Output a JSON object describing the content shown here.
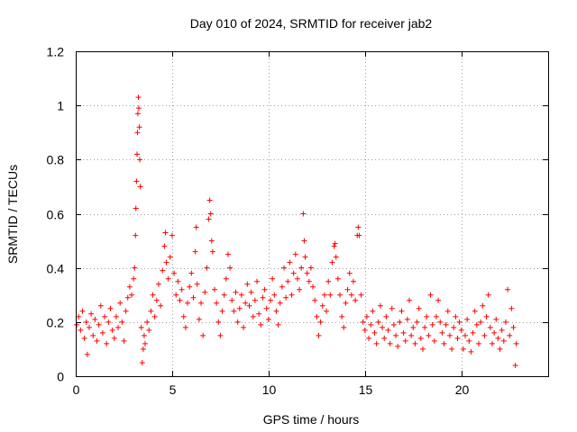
{
  "chart_data": {
    "type": "scatter",
    "title": "Day 010 of 2024, SRMTID for receiver jab2",
    "xlabel": "GPS time / hours",
    "ylabel": "SRMTID / TECUs",
    "xlim": [
      0,
      24.5
    ],
    "ylim": [
      0,
      1.2
    ],
    "x_ticks": [
      0,
      5,
      10,
      15,
      20
    ],
    "x_tick_labels": [
      "0",
      "5",
      "10",
      "15",
      "20"
    ],
    "y_ticks": [
      0,
      0.2,
      0.4,
      0.6,
      0.8,
      1.0,
      1.2
    ],
    "y_tick_labels": [
      "0",
      "0.2",
      "0.4",
      "0.6",
      "0.8",
      "1",
      "1.2"
    ],
    "grid": true,
    "marker": "plus",
    "color": "#ff0000",
    "series": [
      {
        "name": "jab2",
        "points": [
          [
            0.05,
            0.19
          ],
          [
            0.15,
            0.22
          ],
          [
            0.25,
            0.17
          ],
          [
            0.35,
            0.24
          ],
          [
            0.45,
            0.14
          ],
          [
            0.55,
            0.2
          ],
          [
            0.6,
            0.08
          ],
          [
            0.7,
            0.18
          ],
          [
            0.8,
            0.23
          ],
          [
            0.9,
            0.15
          ],
          [
            1.0,
            0.21
          ],
          [
            1.1,
            0.13
          ],
          [
            1.2,
            0.19
          ],
          [
            1.3,
            0.26
          ],
          [
            1.4,
            0.16
          ],
          [
            1.5,
            0.22
          ],
          [
            1.6,
            0.12
          ],
          [
            1.7,
            0.2
          ],
          [
            1.8,
            0.25
          ],
          [
            1.9,
            0.17
          ],
          [
            2.0,
            0.14
          ],
          [
            2.1,
            0.22
          ],
          [
            2.2,
            0.18
          ],
          [
            2.3,
            0.27
          ],
          [
            2.4,
            0.2
          ],
          [
            2.5,
            0.13
          ],
          [
            2.6,
            0.24
          ],
          [
            2.7,
            0.29
          ],
          [
            2.8,
            0.33
          ],
          [
            2.9,
            0.3
          ],
          [
            3.0,
            0.36
          ],
          [
            3.05,
            0.4
          ],
          [
            3.1,
            0.52
          ],
          [
            3.12,
            0.62
          ],
          [
            3.15,
            0.72
          ],
          [
            3.18,
            0.82
          ],
          [
            3.2,
            0.9
          ],
          [
            3.22,
            0.97
          ],
          [
            3.25,
            1.03
          ],
          [
            3.27,
            0.99
          ],
          [
            3.3,
            0.92
          ],
          [
            3.32,
            0.8
          ],
          [
            3.35,
            0.7
          ],
          [
            3.4,
            0.18
          ],
          [
            3.45,
            0.05
          ],
          [
            3.5,
            0.1
          ],
          [
            3.55,
            0.15
          ],
          [
            3.6,
            0.12
          ],
          [
            3.7,
            0.2
          ],
          [
            3.8,
            0.17
          ],
          [
            3.9,
            0.24
          ],
          [
            4.0,
            0.3
          ],
          [
            4.1,
            0.22
          ],
          [
            4.2,
            0.28
          ],
          [
            4.3,
            0.34
          ],
          [
            4.4,
            0.26
          ],
          [
            4.5,
            0.39
          ],
          [
            4.6,
            0.48
          ],
          [
            4.65,
            0.53
          ],
          [
            4.7,
            0.42
          ],
          [
            4.8,
            0.36
          ],
          [
            4.9,
            0.44
          ],
          [
            5.0,
            0.52
          ],
          [
            5.1,
            0.38
          ],
          [
            5.2,
            0.3
          ],
          [
            5.3,
            0.35
          ],
          [
            5.4,
            0.28
          ],
          [
            5.5,
            0.32
          ],
          [
            5.6,
            0.22
          ],
          [
            5.7,
            0.18
          ],
          [
            5.8,
            0.27
          ],
          [
            5.9,
            0.33
          ],
          [
            6.0,
            0.38
          ],
          [
            6.1,
            0.29
          ],
          [
            6.2,
            0.46
          ],
          [
            6.25,
            0.55
          ],
          [
            6.3,
            0.34
          ],
          [
            6.4,
            0.21
          ],
          [
            6.5,
            0.27
          ],
          [
            6.6,
            0.15
          ],
          [
            6.7,
            0.31
          ],
          [
            6.8,
            0.4
          ],
          [
            6.9,
            0.58
          ],
          [
            6.95,
            0.65
          ],
          [
            7.0,
            0.6
          ],
          [
            7.05,
            0.5
          ],
          [
            7.1,
            0.46
          ],
          [
            7.2,
            0.32
          ],
          [
            7.3,
            0.27
          ],
          [
            7.4,
            0.2
          ],
          [
            7.5,
            0.15
          ],
          [
            7.6,
            0.24
          ],
          [
            7.7,
            0.3
          ],
          [
            7.8,
            0.36
          ],
          [
            7.9,
            0.45
          ],
          [
            8.0,
            0.4
          ],
          [
            8.1,
            0.28
          ],
          [
            8.2,
            0.24
          ],
          [
            8.3,
            0.31
          ],
          [
            8.4,
            0.2
          ],
          [
            8.5,
            0.25
          ],
          [
            8.6,
            0.3
          ],
          [
            8.7,
            0.18
          ],
          [
            8.8,
            0.27
          ],
          [
            8.9,
            0.34
          ],
          [
            9.0,
            0.26
          ],
          [
            9.1,
            0.31
          ],
          [
            9.2,
            0.22
          ],
          [
            9.3,
            0.28
          ],
          [
            9.4,
            0.35
          ],
          [
            9.5,
            0.23
          ],
          [
            9.6,
            0.19
          ],
          [
            9.7,
            0.29
          ],
          [
            9.8,
            0.32
          ],
          [
            9.9,
            0.25
          ],
          [
            10.0,
            0.21
          ],
          [
            10.1,
            0.28
          ],
          [
            10.2,
            0.36
          ],
          [
            10.3,
            0.3
          ],
          [
            10.4,
            0.24
          ],
          [
            10.5,
            0.19
          ],
          [
            10.6,
            0.27
          ],
          [
            10.7,
            0.33
          ],
          [
            10.8,
            0.4
          ],
          [
            10.9,
            0.29
          ],
          [
            11.0,
            0.35
          ],
          [
            11.1,
            0.42
          ],
          [
            11.2,
            0.3
          ],
          [
            11.3,
            0.38
          ],
          [
            11.4,
            0.45
          ],
          [
            11.5,
            0.36
          ],
          [
            11.6,
            0.32
          ],
          [
            11.7,
            0.4
          ],
          [
            11.8,
            0.6
          ],
          [
            11.85,
            0.5
          ],
          [
            11.9,
            0.44
          ],
          [
            12.0,
            0.38
          ],
          [
            12.1,
            0.35
          ],
          [
            12.2,
            0.4
          ],
          [
            12.3,
            0.33
          ],
          [
            12.4,
            0.28
          ],
          [
            12.5,
            0.22
          ],
          [
            12.6,
            0.15
          ],
          [
            12.7,
            0.2
          ],
          [
            12.8,
            0.26
          ],
          [
            12.9,
            0.3
          ],
          [
            13.0,
            0.24
          ],
          [
            13.1,
            0.35
          ],
          [
            13.2,
            0.3
          ],
          [
            13.3,
            0.42
          ],
          [
            13.4,
            0.48
          ],
          [
            13.45,
            0.49
          ],
          [
            13.5,
            0.44
          ],
          [
            13.6,
            0.36
          ],
          [
            13.7,
            0.3
          ],
          [
            13.8,
            0.22
          ],
          [
            13.9,
            0.18
          ],
          [
            14.0,
            0.27
          ],
          [
            14.1,
            0.32
          ],
          [
            14.2,
            0.38
          ],
          [
            14.3,
            0.3
          ],
          [
            14.4,
            0.35
          ],
          [
            14.5,
            0.28
          ],
          [
            14.6,
            0.52
          ],
          [
            14.65,
            0.55
          ],
          [
            14.7,
            0.52
          ],
          [
            14.8,
            0.3
          ],
          [
            14.9,
            0.2
          ],
          [
            15.0,
            0.17
          ],
          [
            15.1,
            0.22
          ],
          [
            15.2,
            0.14
          ],
          [
            15.3,
            0.19
          ],
          [
            15.4,
            0.24
          ],
          [
            15.5,
            0.16
          ],
          [
            15.6,
            0.12
          ],
          [
            15.7,
            0.2
          ],
          [
            15.8,
            0.26
          ],
          [
            15.9,
            0.18
          ],
          [
            16.0,
            0.14
          ],
          [
            16.1,
            0.22
          ],
          [
            16.2,
            0.17
          ],
          [
            16.3,
            0.12
          ],
          [
            16.4,
            0.25
          ],
          [
            16.5,
            0.19
          ],
          [
            16.6,
            0.15
          ],
          [
            16.7,
            0.11
          ],
          [
            16.8,
            0.2
          ],
          [
            16.9,
            0.24
          ],
          [
            17.0,
            0.16
          ],
          [
            17.1,
            0.13
          ],
          [
            17.2,
            0.21
          ],
          [
            17.3,
            0.28
          ],
          [
            17.4,
            0.15
          ],
          [
            17.5,
            0.18
          ],
          [
            17.6,
            0.12
          ],
          [
            17.7,
            0.2
          ],
          [
            17.8,
            0.25
          ],
          [
            17.9,
            0.14
          ],
          [
            18.0,
            0.1
          ],
          [
            18.1,
            0.18
          ],
          [
            18.2,
            0.22
          ],
          [
            18.3,
            0.15
          ],
          [
            18.4,
            0.3
          ],
          [
            18.5,
            0.19
          ],
          [
            18.6,
            0.13
          ],
          [
            18.7,
            0.22
          ],
          [
            18.8,
            0.28
          ],
          [
            18.9,
            0.2
          ],
          [
            19.0,
            0.16
          ],
          [
            19.1,
            0.12
          ],
          [
            19.2,
            0.19
          ],
          [
            19.3,
            0.24
          ],
          [
            19.4,
            0.15
          ],
          [
            19.5,
            0.1
          ],
          [
            19.6,
            0.18
          ],
          [
            19.7,
            0.22
          ],
          [
            19.8,
            0.14
          ],
          [
            19.9,
            0.2
          ],
          [
            20.0,
            0.17
          ],
          [
            20.1,
            0.1
          ],
          [
            20.2,
            0.15
          ],
          [
            20.3,
            0.21
          ],
          [
            20.4,
            0.13
          ],
          [
            20.5,
            0.09
          ],
          [
            20.6,
            0.16
          ],
          [
            20.7,
            0.24
          ],
          [
            20.8,
            0.19
          ],
          [
            20.9,
            0.12
          ],
          [
            21.0,
            0.2
          ],
          [
            21.1,
            0.26
          ],
          [
            21.2,
            0.15
          ],
          [
            21.3,
            0.22
          ],
          [
            21.4,
            0.3
          ],
          [
            21.5,
            0.18
          ],
          [
            21.6,
            0.12
          ],
          [
            21.7,
            0.16
          ],
          [
            21.8,
            0.21
          ],
          [
            21.9,
            0.14
          ],
          [
            22.0,
            0.1
          ],
          [
            22.1,
            0.17
          ],
          [
            22.2,
            0.13
          ],
          [
            22.3,
            0.2
          ],
          [
            22.4,
            0.32
          ],
          [
            22.5,
            0.15
          ],
          [
            22.6,
            0.25
          ],
          [
            22.7,
            0.18
          ],
          [
            22.8,
            0.04
          ],
          [
            22.85,
            0.12
          ]
        ]
      }
    ]
  }
}
